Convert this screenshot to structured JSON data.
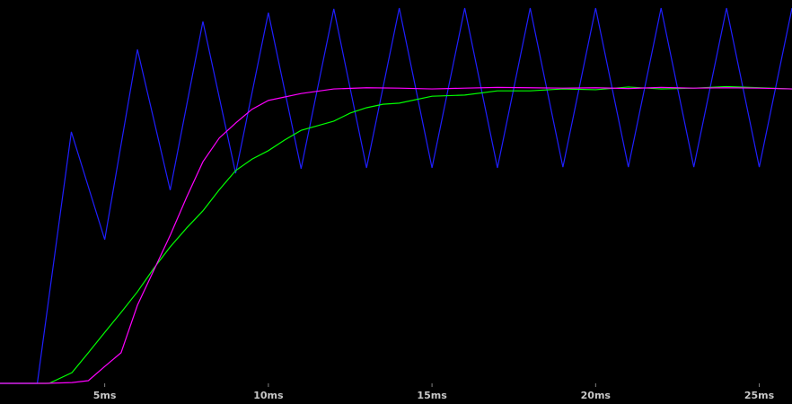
{
  "chart_data": {
    "type": "line",
    "xlim": [
      1.8,
      26.0
    ],
    "ylim": [
      0,
      1
    ],
    "xticks": [
      {
        "value": 5,
        "label": "5ms"
      },
      {
        "value": 10,
        "label": "10ms"
      },
      {
        "value": 15,
        "label": "15ms"
      },
      {
        "value": 20,
        "label": "20ms"
      },
      {
        "value": 25,
        "label": "25ms"
      }
    ],
    "series": [
      {
        "color": "#1f1fff",
        "x": [
          1.8,
          2.94,
          3.98,
          5,
          6,
          7,
          8,
          9,
          10,
          11,
          12,
          13,
          14,
          15,
          16,
          17,
          18,
          19,
          20,
          21,
          22,
          23,
          24,
          25,
          26
        ],
        "values": [
          0,
          0,
          0.656,
          0.375,
          0.871,
          0.504,
          0.944,
          0.548,
          0.967,
          0.56,
          0.977,
          0.562,
          0.979,
          0.562,
          0.979,
          0.562,
          0.979,
          0.564,
          0.979,
          0.564,
          0.979,
          0.564,
          0.979,
          0.564,
          0.979
        ]
      },
      {
        "color": "#00ff00",
        "x": [
          1.8,
          3.3,
          4,
          4.5,
          5,
          5.5,
          6,
          6.5,
          7,
          7.5,
          8,
          8.5,
          9,
          9.5,
          10,
          10.5,
          11,
          11.5,
          12,
          12.5,
          13,
          13.5,
          14,
          15,
          16,
          17,
          18,
          19,
          20,
          21,
          22,
          23,
          24,
          25,
          26
        ],
        "values": [
          0,
          0,
          0.028,
          0.08,
          0.133,
          0.185,
          0.239,
          0.3,
          0.356,
          0.405,
          0.45,
          0.505,
          0.555,
          0.585,
          0.607,
          0.635,
          0.66,
          0.672,
          0.684,
          0.705,
          0.719,
          0.728,
          0.731,
          0.749,
          0.752,
          0.763,
          0.763,
          0.768,
          0.766,
          0.773,
          0.768,
          0.77,
          0.774,
          0.771,
          0.768
        ]
      },
      {
        "color": "#ff00ff",
        "x": [
          1.8,
          3.2,
          4,
          4.5,
          5,
          5.5,
          6,
          6.5,
          7,
          7.5,
          8,
          8.5,
          9,
          9.5,
          10,
          11,
          12,
          13,
          14,
          15,
          16,
          17,
          18,
          19,
          20,
          21,
          22,
          23,
          24,
          25,
          26
        ],
        "values": [
          0,
          0,
          0.002,
          0.007,
          0.044,
          0.08,
          0.204,
          0.295,
          0.386,
          0.485,
          0.578,
          0.64,
          0.679,
          0.715,
          0.738,
          0.756,
          0.768,
          0.771,
          0.77,
          0.768,
          0.77,
          0.772,
          0.771,
          0.77,
          0.771,
          0.769,
          0.772,
          0.77,
          0.771,
          0.77,
          0.768
        ]
      }
    ]
  }
}
